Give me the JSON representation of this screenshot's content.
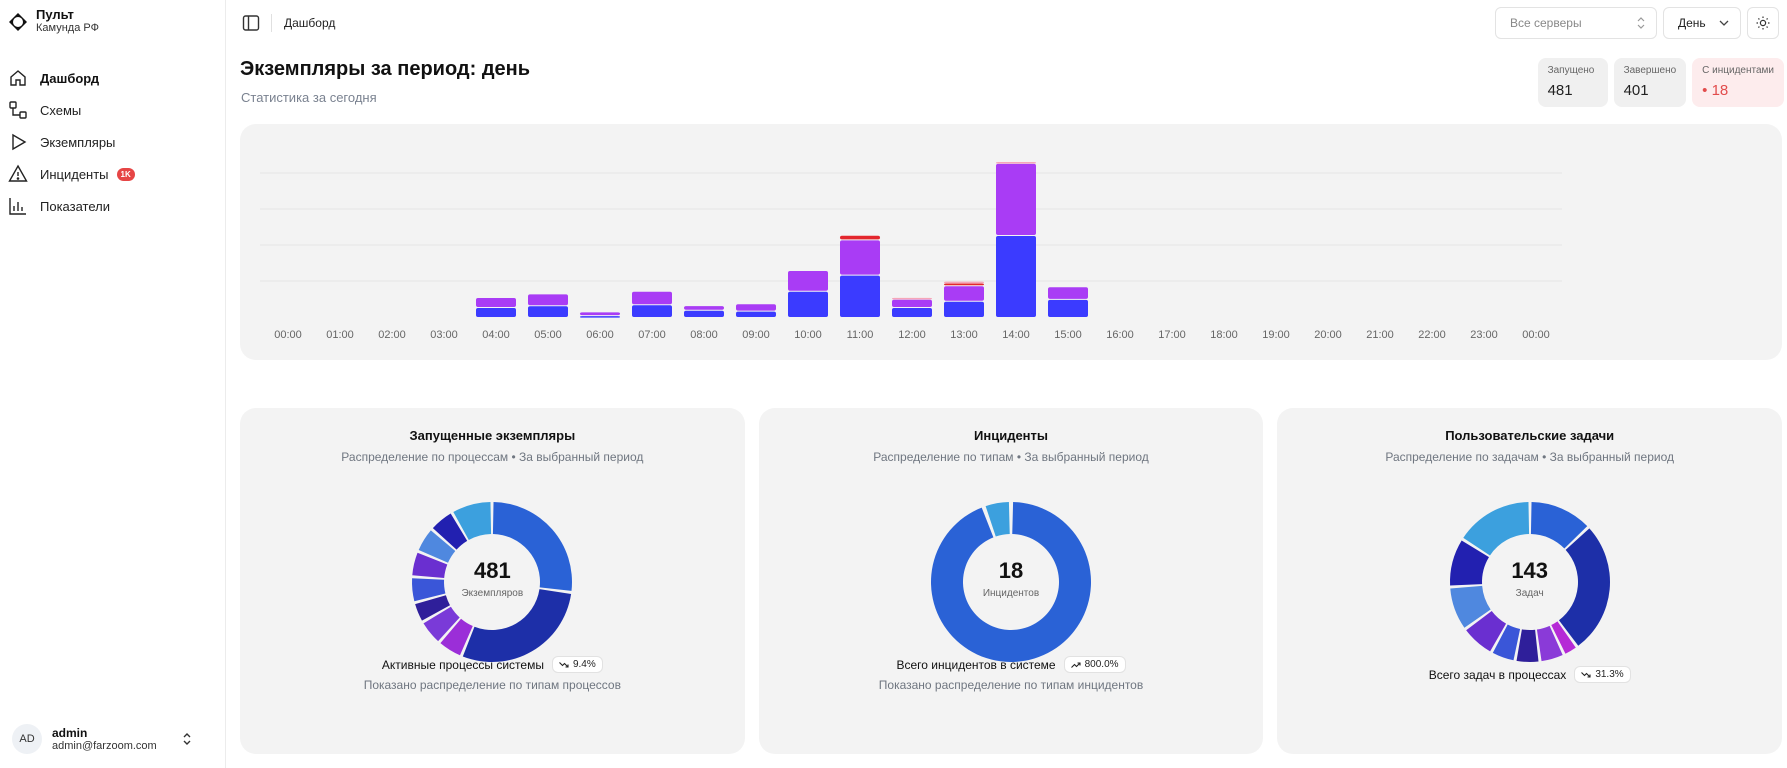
{
  "brand": {
    "name": "Пульт",
    "subtitle": "Камунда РФ"
  },
  "sidebar": {
    "items": [
      {
        "label": "Дашборд",
        "icon": "home-icon",
        "active": true
      },
      {
        "label": "Схемы",
        "icon": "schemes-icon"
      },
      {
        "label": "Экземпляры",
        "icon": "play-icon"
      },
      {
        "label": "Инциденты",
        "icon": "warning-icon",
        "badge": "1K"
      },
      {
        "label": "Показатели",
        "icon": "bar-chart-icon"
      }
    ],
    "user": {
      "initials": "AD",
      "name": "admin",
      "email": "admin@farzoom.com"
    }
  },
  "header": {
    "breadcrumb": "Дашборд",
    "servers_placeholder": "Все серверы",
    "period_value": "День"
  },
  "main": {
    "title": "Экземпляры за период: день",
    "subtitle": "Статистика за сегодня",
    "stats": [
      {
        "label": "Запущено",
        "value": "481"
      },
      {
        "label": "Завершено",
        "value": "401"
      },
      {
        "label": "С инцидентами",
        "value": "• 18"
      }
    ]
  },
  "colors": {
    "blue": "#3b3bff",
    "purple": "#a93cf5",
    "red": "#e3262d",
    "pink": "#f6a6b9"
  },
  "chart_data": [
    {
      "type": "bar",
      "stacked": true,
      "categories": [
        "00:00",
        "01:00",
        "02:00",
        "03:00",
        "04:00",
        "05:00",
        "06:00",
        "07:00",
        "08:00",
        "09:00",
        "10:00",
        "11:00",
        "12:00",
        "13:00",
        "14:00",
        "15:00",
        "16:00",
        "17:00",
        "18:00",
        "19:00",
        "20:00",
        "21:00",
        "22:00",
        "23:00",
        "00:00"
      ],
      "series": [
        {
          "values": [
            0,
            0,
            0,
            0,
            10,
            12,
            1,
            13,
            7,
            6,
            28,
            46,
            10,
            17,
            90,
            19,
            0,
            0,
            0,
            0,
            0,
            0,
            0,
            0,
            0
          ]
        },
        {
          "values": [
            0,
            0,
            0,
            0,
            10,
            12,
            3,
            14,
            4,
            7,
            22,
            38,
            8,
            16,
            79,
            13,
            0,
            0,
            0,
            0,
            0,
            0,
            0,
            0,
            0
          ]
        },
        {
          "values": [
            0,
            0,
            0,
            0,
            0,
            0,
            0,
            0,
            0,
            0,
            0,
            4,
            0,
            2,
            0,
            0,
            0,
            0,
            0,
            0,
            0,
            0,
            0,
            0,
            0
          ]
        },
        {
          "values": [
            0,
            0,
            0,
            0,
            0,
            0,
            0,
            0,
            0,
            0,
            0,
            0,
            1,
            1,
            1,
            0,
            0,
            0,
            0,
            0,
            0,
            0,
            0,
            0,
            0
          ]
        }
      ],
      "grid": true,
      "legend": "none"
    },
    {
      "type": "pie",
      "donut": true,
      "title": "Запущенные экземпляры",
      "subtitle": "Распределение по процессам • За выбранный период",
      "center_value": "481",
      "center_label": "Экземпляров",
      "slices": [
        {
          "value": 26,
          "color": "#2a62d6"
        },
        {
          "value": 28,
          "color": "#1d2fa8"
        },
        {
          "value": 5,
          "color": "#9b2ed8"
        },
        {
          "value": 5,
          "color": "#7a3ad8"
        },
        {
          "value": 4,
          "color": "#2f1f9a"
        },
        {
          "value": 5,
          "color": "#3a56d8"
        },
        {
          "value": 5,
          "color": "#6a2fd0"
        },
        {
          "value": 5,
          "color": "#4f88df"
        },
        {
          "value": 5,
          "color": "#2220b0"
        },
        {
          "value": 8,
          "color": "#3ca0de"
        }
      ],
      "footer_label": "Активные процессы системы",
      "footer_trend": "9.4%",
      "note": "Показано распределение по типам процессов"
    },
    {
      "type": "pie",
      "donut": true,
      "title": "Инциденты",
      "subtitle": "Распределение по типам • За выбранный период",
      "center_value": "18",
      "center_label": "Инцидентов",
      "slices": [
        {
          "value": 17,
          "color": "#2a62d6"
        },
        {
          "value": 1,
          "color": "#3ca0de"
        }
      ],
      "footer_label": "Всего инцидентов в системе",
      "footer_trend": "800.0%",
      "note": "Показано распределение по типам инцидентов"
    },
    {
      "type": "pie",
      "donut": true,
      "title": "Пользовательские задачи",
      "subtitle": "Распределение по задачам • За выбранный период",
      "center_value": "143",
      "center_label": "Задач",
      "slices": [
        {
          "value": 13,
          "color": "#2a62d6"
        },
        {
          "value": 27,
          "color": "#1d2fa8"
        },
        {
          "value": 3,
          "color": "#b52ad6"
        },
        {
          "value": 5,
          "color": "#8a3ad8"
        },
        {
          "value": 5,
          "color": "#2f1f9a"
        },
        {
          "value": 5,
          "color": "#3a56d8"
        },
        {
          "value": 7,
          "color": "#6a2fd0"
        },
        {
          "value": 9,
          "color": "#4f88df"
        },
        {
          "value": 10,
          "color": "#2220b0"
        },
        {
          "value": 16,
          "color": "#3ca0de"
        }
      ],
      "footer_label": "Всего задач в процессах",
      "footer_trend": "31.3%"
    }
  ]
}
